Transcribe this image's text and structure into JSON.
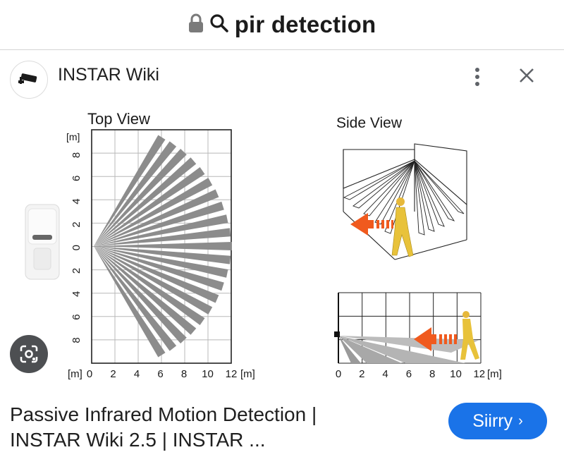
{
  "address_bar": {
    "query": "pir detection",
    "lock_icon": "lock-icon",
    "search_icon": "search-icon"
  },
  "result": {
    "site_name": "INSTAR Wiki",
    "site_icon": "camera-logo-icon",
    "title_line1": "Passive Infrared Motion Detection |",
    "title_line2": "INSTAR Wiki 2.5 | INSTAR ...",
    "visit_label": "Siirry",
    "visit_chevron": "›"
  },
  "figure": {
    "top_view_title": "Top View",
    "side_view_title": "Side View",
    "unit_label": "[m]",
    "top_view_y_ticks": [
      "8",
      "6",
      "4",
      "2",
      "0",
      "2",
      "4",
      "6",
      "8"
    ],
    "top_view_x_ticks": [
      "0",
      "2",
      "4",
      "6",
      "8",
      "10",
      "12"
    ],
    "side_view_x_ticks": [
      "0",
      "2",
      "4",
      "6",
      "8",
      "10",
      "12"
    ],
    "colors": {
      "beam": "#8c8c8c",
      "arrow": "#f05a1e",
      "person": "#e8c23a",
      "grid": "#b8b8b8"
    }
  }
}
